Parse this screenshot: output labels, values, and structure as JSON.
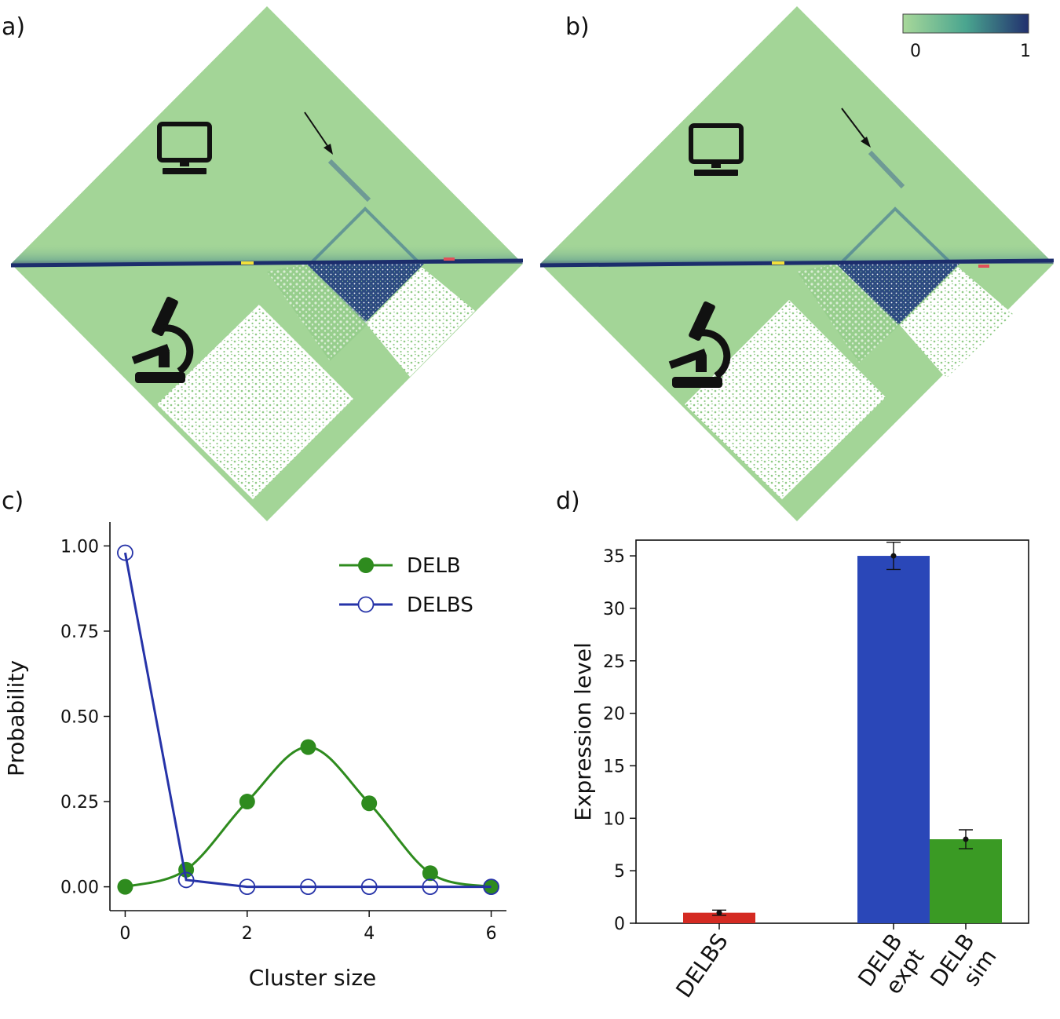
{
  "panels": {
    "a": "a)",
    "b": "b)",
    "c": "c)",
    "d": "d)"
  },
  "colorbar": {
    "min_label": "0",
    "max_label": "1",
    "low_color": "#a8d89a",
    "mid_color": "#4aa58f",
    "high_color": "#22306e"
  },
  "heatmap_colors": {
    "background": "#a3d597",
    "diagonal": "#1c2d6c",
    "dots": "#ffffff"
  },
  "icons": {
    "top": "computer-icon",
    "bottom": "microscope-icon"
  },
  "chart_data": [
    {
      "type": "line",
      "title": "",
      "xlabel": "Cluster size",
      "ylabel": "Probability",
      "xlim": [
        -0.25,
        6.25
      ],
      "ylim": [
        -0.07,
        1.07
      ],
      "xticks": [
        0,
        2,
        4,
        6
      ],
      "yticks": [
        0,
        0.25,
        0.5,
        0.75,
        1.0
      ],
      "xtick_labels": [
        "0",
        "2",
        "4",
        "6"
      ],
      "ytick_labels": [
        "0.00",
        "0.25",
        "0.50",
        "0.75",
        "1.00"
      ],
      "legend_position": "top-right",
      "grid": false,
      "series": [
        {
          "name": "DELB",
          "color": "#2e8b1e",
          "marker": "filled-circle",
          "smooth": true,
          "x": [
            0,
            1,
            2,
            3,
            4,
            5,
            6
          ],
          "values": [
            0.0,
            0.05,
            0.25,
            0.41,
            0.245,
            0.04,
            0.0
          ]
        },
        {
          "name": "DELBS",
          "color": "#2633a8",
          "marker": "open-circle",
          "smooth": false,
          "x": [
            0,
            1,
            2,
            3,
            4,
            5,
            6
          ],
          "values": [
            0.98,
            0.02,
            0.0,
            0.0,
            0.0,
            0.0,
            0.0
          ]
        }
      ]
    },
    {
      "type": "bar",
      "title": "",
      "xlabel": "",
      "ylabel": "Expression level",
      "ylim": [
        0,
        36.5
      ],
      "yticks": [
        0,
        5,
        10,
        15,
        20,
        25,
        30,
        35
      ],
      "ytick_labels": [
        "0",
        "5",
        "10",
        "15",
        "20",
        "25",
        "30",
        "35"
      ],
      "categories": [
        {
          "lines": [
            "DELBS"
          ],
          "value": 1.0,
          "error": 0.25,
          "color": "#d42a22"
        },
        {
          "lines": [
            "DELB",
            "expt"
          ],
          "value": 35.0,
          "error": 1.3,
          "color": "#2a47b8"
        },
        {
          "lines": [
            "DELB",
            "sim"
          ],
          "value": 8.0,
          "error": 0.9,
          "color": "#3a9a24"
        }
      ]
    }
  ]
}
